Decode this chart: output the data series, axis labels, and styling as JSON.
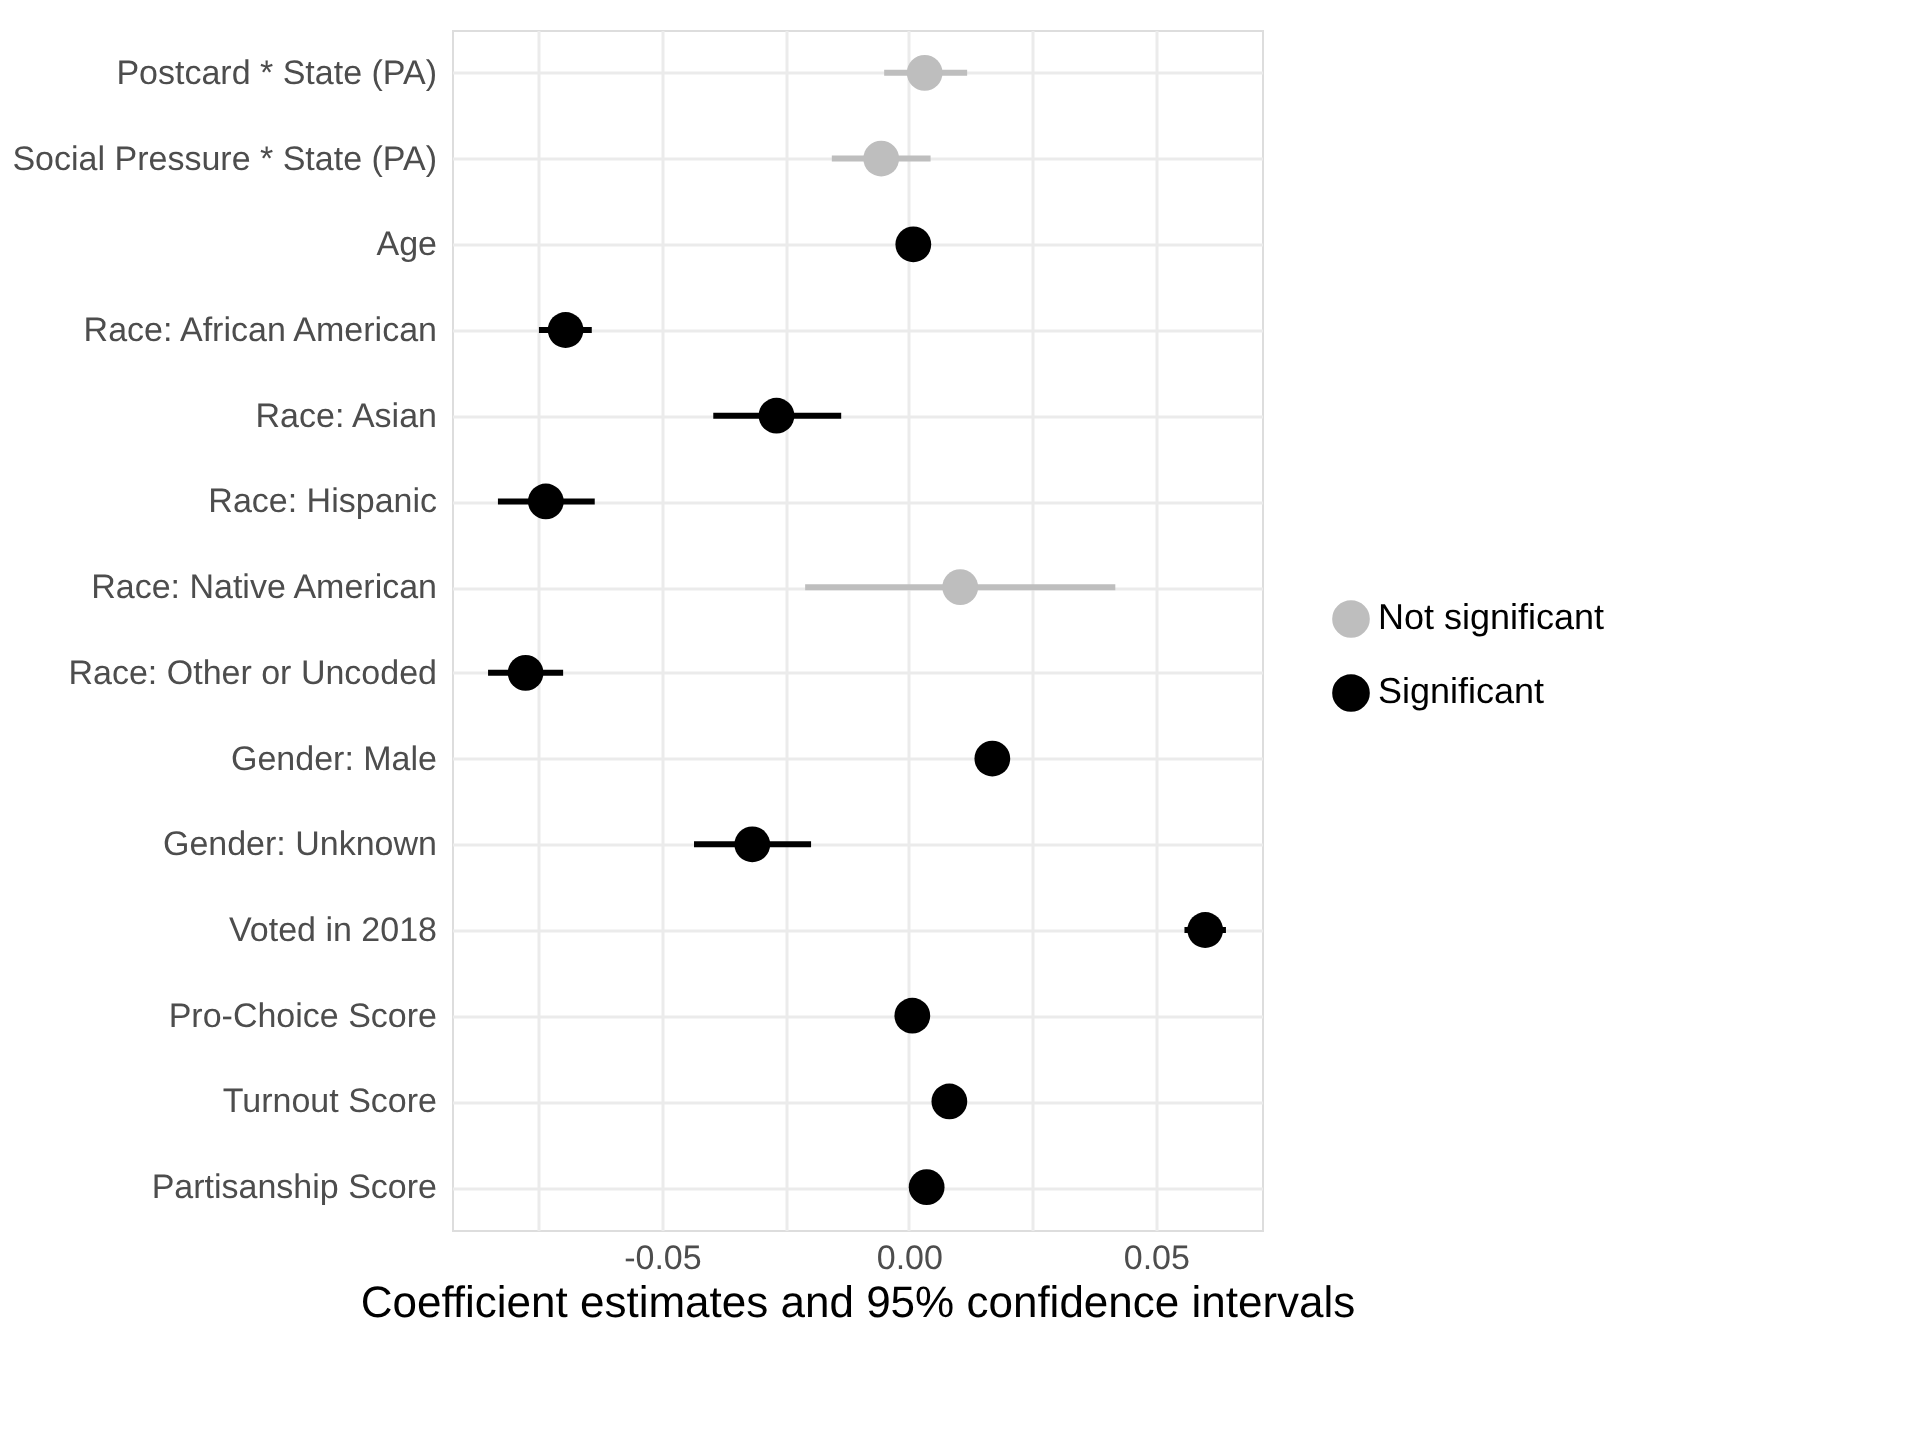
{
  "chart_data": {
    "type": "scatter",
    "xlabel": "Coefficient estimates and 95% confidence intervals",
    "categories": [
      "Postcard * State (PA)",
      "Social Pressure * State (PA)",
      "Age",
      "Race: African American",
      "Race: Asian",
      "Race: Hispanic",
      "Race: Native American",
      "Race: Other or Uncoded",
      "Gender: Male",
      "Gender: Unknown",
      "Voted in 2018",
      "Pro-Choice Score",
      "Turnout Score",
      "Partisanship Score"
    ],
    "series": [
      {
        "name": "Not significant",
        "color": "#bebebe",
        "values": [
          0.0032,
          -0.0056,
          null,
          null,
          null,
          null,
          0.0104,
          null,
          null,
          null,
          null,
          null,
          null,
          null
        ],
        "errors": [
          [
            -0.005,
            0.0118
          ],
          [
            -0.0156,
            0.0044
          ],
          null,
          null,
          null,
          null,
          [
            -0.021,
            0.0418
          ],
          null,
          null,
          null,
          null,
          null,
          null,
          null
        ]
      },
      {
        "name": "Significant",
        "color": "#000000",
        "values": [
          null,
          null,
          0.0009,
          -0.0695,
          -0.0268,
          -0.0735,
          null,
          -0.0776,
          0.0169,
          -0.0317,
          0.06,
          0.0007,
          0.0082,
          0.0036
        ],
        "errors": [
          null,
          null,
          null,
          [
            -0.0749,
            -0.0642
          ],
          [
            -0.0396,
            -0.0137
          ],
          [
            -0.0832,
            -0.0636
          ],
          null,
          [
            -0.0852,
            -0.07
          ],
          null,
          [
            -0.0435,
            -0.0198
          ],
          [
            0.0558,
            0.0642
          ],
          null,
          null,
          null
        ]
      }
    ],
    "orientation": "horizontal",
    "xlim": [
      -0.0925,
      0.0715
    ],
    "xticks": [
      {
        "value": -0.075,
        "label": null
      },
      -0.05,
      {
        "value": -0.025,
        "label": null
      },
      {
        "value": 0,
        "label": "0.00"
      },
      {
        "value": 0.025,
        "label": null
      },
      0.05
    ],
    "grid": true,
    "legend": "right",
    "marker": "circle"
  }
}
